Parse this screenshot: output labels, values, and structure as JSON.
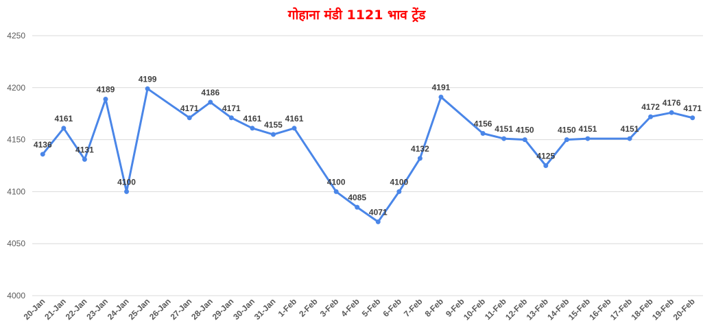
{
  "colors": {
    "line": "#4a86e8",
    "title": "#ff0000",
    "grid": "#d9d9d9",
    "text": "#595959",
    "label": "#404040"
  },
  "chart_data": {
    "type": "line",
    "title": "गोहाना मंडी 1121 भाव ट्रेंड",
    "xlabel": "",
    "ylabel": "",
    "ylim": [
      4000,
      4250
    ],
    "yticks": [
      4000,
      4050,
      4100,
      4150,
      4200,
      4250
    ],
    "grid": true,
    "legend": "none",
    "categories": [
      "20-Jan",
      "21-Jan",
      "22-Jan",
      "23-Jan",
      "24-Jan",
      "25-Jan",
      "26-Jan",
      "27-Jan",
      "28-Jan",
      "29-Jan",
      "30-Jan",
      "31-Jan",
      "1-Feb",
      "2-Feb",
      "3-Feb",
      "4-Feb",
      "5-Feb",
      "6-Feb",
      "7-Feb",
      "8-Feb",
      "9-Feb",
      "10-Feb",
      "11-Feb",
      "12-Feb",
      "13-Feb",
      "14-Feb",
      "15-Feb",
      "16-Feb",
      "17-Feb",
      "18-Feb",
      "19-Feb",
      "20-Feb"
    ],
    "series": [
      {
        "points": [
          {
            "x": "20-Jan",
            "y": 4136
          },
          {
            "x": "21-Jan",
            "y": 4161
          },
          {
            "x": "22-Jan",
            "y": 4131
          },
          {
            "x": "23-Jan",
            "y": 4189
          },
          {
            "x": "24-Jan",
            "y": 4100
          },
          {
            "x": "25-Jan",
            "y": 4199
          },
          {
            "x": "27-Jan",
            "y": 4171
          },
          {
            "x": "28-Jan",
            "y": 4186
          },
          {
            "x": "29-Jan",
            "y": 4171
          },
          {
            "x": "30-Jan",
            "y": 4161
          },
          {
            "x": "31-Jan",
            "y": 4155
          },
          {
            "x": "1-Feb",
            "y": 4161
          },
          {
            "x": "3-Feb",
            "y": 4100
          },
          {
            "x": "4-Feb",
            "y": 4085
          },
          {
            "x": "5-Feb",
            "y": 4071
          },
          {
            "x": "6-Feb",
            "y": 4100
          },
          {
            "x": "7-Feb",
            "y": 4132
          },
          {
            "x": "8-Feb",
            "y": 4191
          },
          {
            "x": "10-Feb",
            "y": 4156
          },
          {
            "x": "11-Feb",
            "y": 4151
          },
          {
            "x": "12-Feb",
            "y": 4150
          },
          {
            "x": "13-Feb",
            "y": 4125
          },
          {
            "x": "14-Feb",
            "y": 4150
          },
          {
            "x": "15-Feb",
            "y": 4151
          },
          {
            "x": "17-Feb",
            "y": 4151
          },
          {
            "x": "18-Feb",
            "y": 4172
          },
          {
            "x": "19-Feb",
            "y": 4176
          },
          {
            "x": "20-Feb",
            "y": 4171
          }
        ]
      }
    ]
  }
}
